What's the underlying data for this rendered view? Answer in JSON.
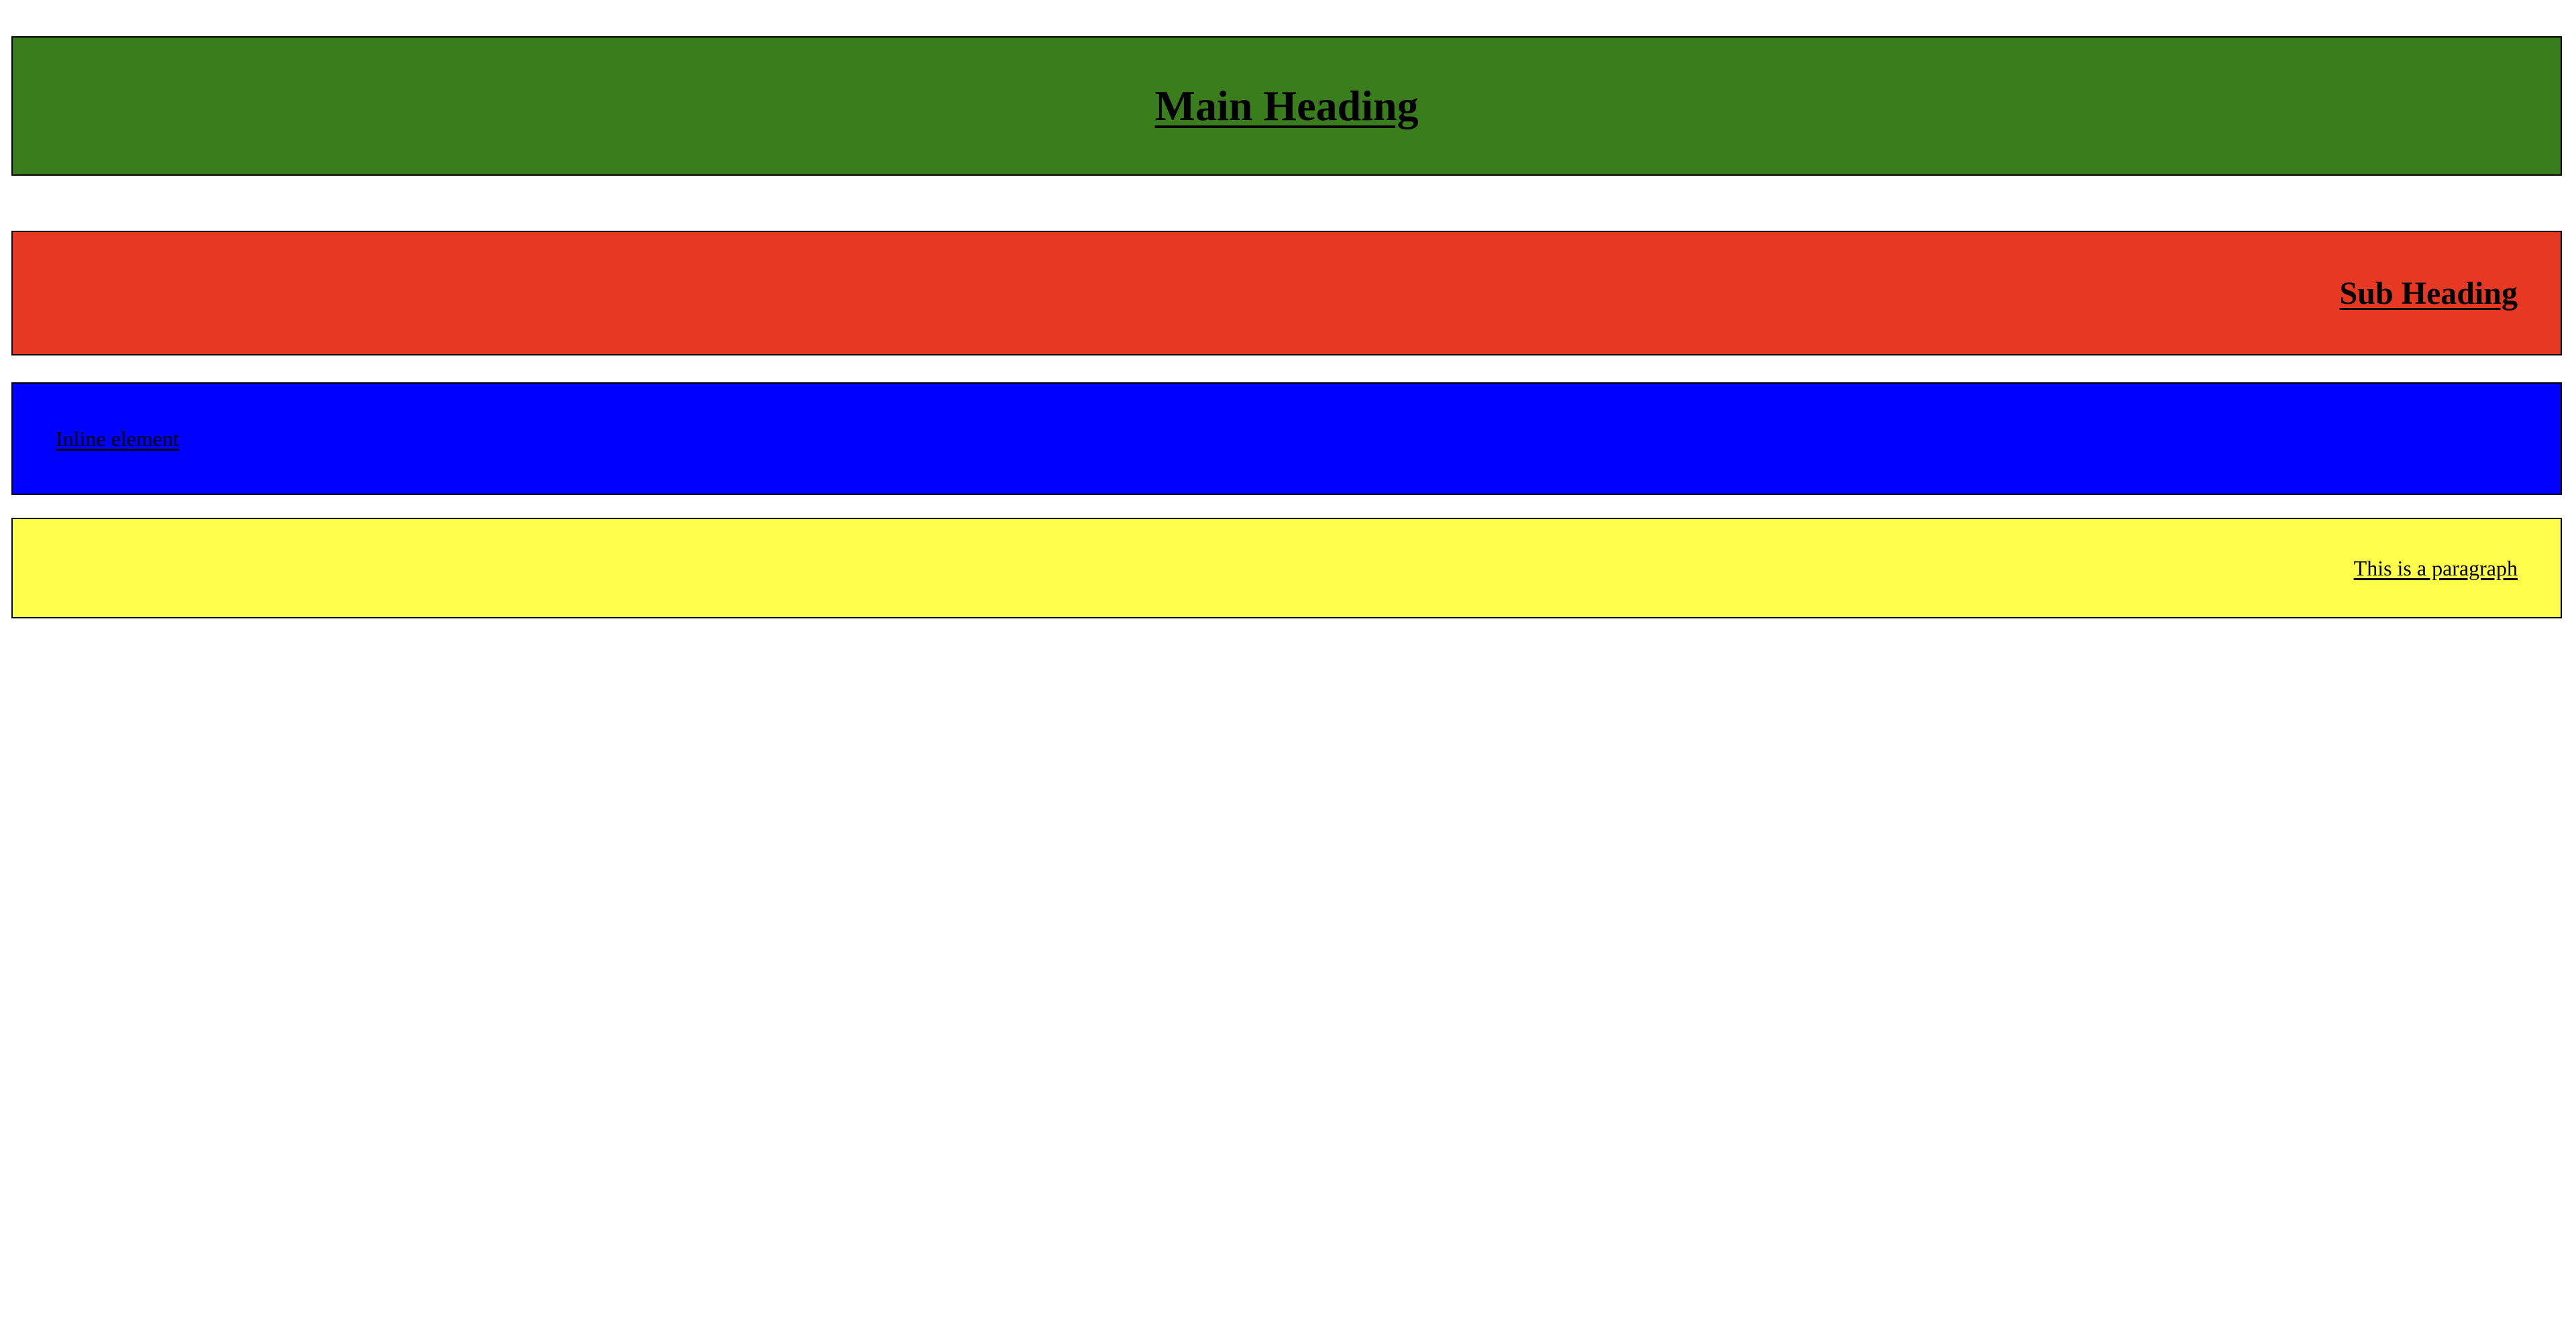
{
  "sections": {
    "main": {
      "text": "Main Heading",
      "background": "#3a7d1c"
    },
    "sub": {
      "text": "Sub Heading",
      "background": "#e73823"
    },
    "inline": {
      "text": "Inline element",
      "background": "#0000ff"
    },
    "paragraph": {
      "text": "This is a paragraph",
      "background": "#ffff4b"
    }
  }
}
